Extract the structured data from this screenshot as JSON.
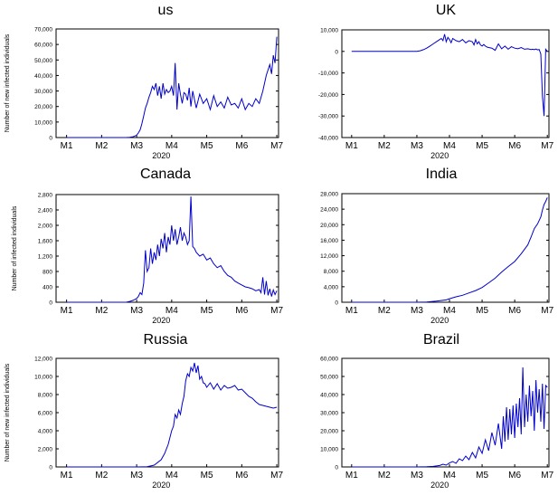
{
  "figure": {
    "year_label": "2020",
    "month_ticks": [
      "M1",
      "M2",
      "M3",
      "M4",
      "M5",
      "M6",
      "M7"
    ],
    "line_color": "#0000cc"
  },
  "chart_data": [
    {
      "type": "line",
      "title": "us",
      "ylabel": "Number of new infected individuals",
      "xlabel": "2020",
      "ylim": [
        0,
        70000
      ],
      "yticks": [
        0,
        10000,
        20000,
        30000,
        40000,
        50000,
        60000,
        70000
      ],
      "ytick_labels": [
        "0",
        "10,000",
        "20,000",
        "30,000",
        "40,000",
        "50,000",
        "60,000",
        "70,000"
      ],
      "x_month_ticks": [
        "M1",
        "M2",
        "M3",
        "M4",
        "M5",
        "M6",
        "M7"
      ],
      "series": [
        {
          "x": [
            1.0,
            2.0,
            2.7,
            2.8,
            2.9,
            3.0,
            3.05,
            3.1,
            3.15,
            3.2,
            3.25,
            3.3,
            3.35,
            3.4,
            3.45,
            3.5,
            3.55,
            3.6,
            3.65,
            3.7,
            3.75,
            3.8,
            3.85,
            3.9,
            3.95,
            4.0,
            4.05,
            4.1,
            4.15,
            4.2,
            4.25,
            4.3,
            4.35,
            4.4,
            4.45,
            4.5,
            4.55,
            4.6,
            4.7,
            4.8,
            4.9,
            5.0,
            5.1,
            5.2,
            5.3,
            5.4,
            5.5,
            5.6,
            5.7,
            5.8,
            5.9,
            6.0,
            6.1,
            6.2,
            6.3,
            6.4,
            6.5,
            6.6,
            6.7,
            6.8,
            6.85,
            6.9,
            6.95,
            7.0
          ],
          "values": [
            0,
            0,
            0,
            100,
            500,
            1500,
            3000,
            5000,
            9000,
            14000,
            19000,
            22000,
            26000,
            29000,
            33000,
            31000,
            35000,
            27000,
            33000,
            25000,
            35000,
            28000,
            31000,
            29000,
            30000,
            33000,
            27000,
            48000,
            18000,
            35000,
            28000,
            22000,
            29000,
            28000,
            24000,
            32000,
            20000,
            30000,
            19000,
            28000,
            22000,
            25000,
            18000,
            27000,
            20000,
            23000,
            19000,
            26000,
            21000,
            22000,
            19000,
            25000,
            18000,
            22000,
            20000,
            25000,
            22000,
            30000,
            40000,
            47000,
            41000,
            53000,
            48000,
            65000
          ]
        }
      ]
    },
    {
      "type": "line",
      "title": "UK",
      "ylabel": "",
      "xlabel": "2020",
      "ylim": [
        -40000,
        10000
      ],
      "yticks": [
        -40000,
        -30000,
        -20000,
        -10000,
        0,
        10000
      ],
      "ytick_labels": [
        "-40,000",
        "-30,000",
        "-20,000",
        "-10,000",
        "0",
        "10,000"
      ],
      "x_month_ticks": [
        "M1",
        "M2",
        "M3",
        "M4",
        "M5",
        "M6",
        "M7"
      ],
      "series": [
        {
          "x": [
            1.0,
            2.0,
            2.8,
            3.0,
            3.1,
            3.2,
            3.3,
            3.4,
            3.5,
            3.6,
            3.7,
            3.75,
            3.8,
            3.85,
            3.9,
            3.95,
            4.0,
            4.05,
            4.1,
            4.2,
            4.3,
            4.4,
            4.5,
            4.6,
            4.7,
            4.75,
            4.8,
            4.85,
            4.9,
            4.95,
            5.0,
            5.05,
            5.1,
            5.15,
            5.2,
            5.3,
            5.4,
            5.5,
            5.6,
            5.7,
            5.8,
            5.9,
            6.0,
            6.1,
            6.2,
            6.3,
            6.4,
            6.5,
            6.55,
            6.6,
            6.65,
            6.7,
            6.75,
            6.8,
            6.85,
            6.9,
            6.95,
            7.0
          ],
          "values": [
            0,
            0,
            0,
            50,
            300,
            800,
            1500,
            2500,
            3500,
            4500,
            5500,
            6000,
            5000,
            8000,
            4500,
            6500,
            5500,
            4000,
            6000,
            5000,
            4500,
            5500,
            4000,
            5000,
            4500,
            3000,
            5500,
            3500,
            4500,
            3000,
            2500,
            3200,
            2500,
            2000,
            1800,
            1500,
            500,
            3500,
            1200,
            2500,
            1000,
            2200,
            1500,
            1200,
            1800,
            1000,
            1200,
            900,
            1000,
            800,
            1100,
            700,
            900,
            -1200,
            -21000,
            -30000,
            1000,
            0
          ]
        }
      ]
    },
    {
      "type": "line",
      "title": "Canada",
      "ylabel": "Number of infected individuals",
      "xlabel": "2020",
      "ylim": [
        0,
        2800
      ],
      "yticks": [
        0,
        400,
        800,
        1200,
        1600,
        2000,
        2400,
        2800
      ],
      "ytick_labels": [
        "0",
        "400",
        "800",
        "1,200",
        "1,600",
        "2,000",
        "2,400",
        "2,800"
      ],
      "x_month_ticks": [
        "M1",
        "M2",
        "M3",
        "M4",
        "M5",
        "M6",
        "M7"
      ],
      "series": [
        {
          "x": [
            1.0,
            2.0,
            2.7,
            2.8,
            2.9,
            3.0,
            3.05,
            3.1,
            3.15,
            3.2,
            3.25,
            3.3,
            3.35,
            3.4,
            3.45,
            3.5,
            3.55,
            3.6,
            3.65,
            3.7,
            3.75,
            3.8,
            3.85,
            3.9,
            3.95,
            4.0,
            4.05,
            4.1,
            4.15,
            4.2,
            4.25,
            4.3,
            4.35,
            4.4,
            4.45,
            4.5,
            4.55,
            4.6,
            4.65,
            4.7,
            4.8,
            4.9,
            5.0,
            5.1,
            5.2,
            5.3,
            5.4,
            5.5,
            5.6,
            5.7,
            5.8,
            5.9,
            6.0,
            6.1,
            6.2,
            6.3,
            6.4,
            6.5,
            6.55,
            6.6,
            6.65,
            6.7,
            6.75,
            6.8,
            6.85,
            6.9,
            6.95,
            7.0
          ],
          "values": [
            0,
            0,
            0,
            20,
            50,
            100,
            150,
            250,
            200,
            500,
            1350,
            800,
            900,
            1400,
            1000,
            1300,
            1100,
            1500,
            1200,
            1650,
            1400,
            1800,
            1300,
            1700,
            1500,
            2000,
            1600,
            1900,
            1500,
            1700,
            1950,
            1600,
            1800,
            1700,
            1500,
            1600,
            2750,
            1450,
            1400,
            1300,
            1200,
            1250,
            1100,
            1150,
            1000,
            900,
            950,
            800,
            700,
            650,
            550,
            500,
            450,
            400,
            380,
            350,
            300,
            330,
            250,
            650,
            200,
            550,
            180,
            350,
            150,
            320,
            200,
            300
          ]
        }
      ]
    },
    {
      "type": "line",
      "title": "India",
      "ylabel": "",
      "xlabel": "2020",
      "ylim": [
        0,
        28000
      ],
      "yticks": [
        0,
        4000,
        8000,
        12000,
        16000,
        20000,
        24000,
        28000
      ],
      "ytick_labels": [
        "0",
        "4,000",
        "8,000",
        "12,000",
        "16,000",
        "20,000",
        "24,000",
        "28,000"
      ],
      "x_month_ticks": [
        "M1",
        "M2",
        "M3",
        "M4",
        "M5",
        "M6",
        "M7"
      ],
      "series": [
        {
          "x": [
            1.0,
            2.0,
            3.0,
            3.3,
            3.6,
            3.9,
            4.0,
            4.2,
            4.4,
            4.6,
            4.8,
            5.0,
            5.2,
            5.4,
            5.6,
            5.8,
            6.0,
            6.2,
            6.4,
            6.5,
            6.6,
            6.7,
            6.8,
            6.85,
            6.9,
            6.95,
            7.0
          ],
          "values": [
            0,
            0,
            0,
            80,
            300,
            600,
            900,
            1400,
            1800,
            2400,
            3000,
            3800,
            5000,
            6200,
            7800,
            9200,
            10500,
            12500,
            14800,
            16800,
            19000,
            20200,
            22000,
            23800,
            25200,
            26000,
            27000
          ]
        }
      ]
    },
    {
      "type": "line",
      "title": "Russia",
      "ylabel": "Number of new infected individuals",
      "xlabel": "2020",
      "ylim": [
        0,
        12000
      ],
      "yticks": [
        0,
        2000,
        4000,
        6000,
        8000,
        10000,
        12000
      ],
      "ytick_labels": [
        "0",
        "2,000",
        "4,000",
        "6,000",
        "8,000",
        "10,000",
        "12,000"
      ],
      "x_month_ticks": [
        "M1",
        "M2",
        "M3",
        "M4",
        "M5",
        "M6",
        "M7"
      ],
      "series": [
        {
          "x": [
            1.0,
            2.0,
            3.0,
            3.3,
            3.5,
            3.7,
            3.8,
            3.9,
            4.0,
            4.05,
            4.1,
            4.15,
            4.2,
            4.25,
            4.3,
            4.35,
            4.4,
            4.45,
            4.5,
            4.55,
            4.6,
            4.65,
            4.7,
            4.75,
            4.8,
            4.85,
            4.9,
            4.95,
            5.0,
            5.1,
            5.2,
            5.3,
            5.4,
            5.5,
            5.6,
            5.7,
            5.8,
            5.9,
            6.0,
            6.1,
            6.2,
            6.3,
            6.4,
            6.5,
            6.6,
            6.7,
            6.8,
            6.9,
            7.0
          ],
          "values": [
            0,
            0,
            0,
            30,
            200,
            800,
            1500,
            2500,
            4000,
            4500,
            5800,
            5400,
            6300,
            5800,
            7000,
            7800,
            9500,
            10300,
            10000,
            11000,
            10600,
            11500,
            10400,
            11200,
            9700,
            10000,
            9300,
            9200,
            8800,
            9300,
            8600,
            9200,
            8500,
            9000,
            8700,
            8800,
            9000,
            8500,
            8600,
            8200,
            7800,
            7600,
            7200,
            6900,
            6800,
            6700,
            6600,
            6500,
            6600
          ]
        }
      ]
    },
    {
      "type": "line",
      "title": "Brazil",
      "ylabel": "",
      "xlabel": "2020",
      "ylim": [
        0,
        60000
      ],
      "yticks": [
        0,
        10000,
        20000,
        30000,
        40000,
        50000,
        60000
      ],
      "ytick_labels": [
        "0",
        "10,000",
        "20,000",
        "30,000",
        "40,000",
        "50,000",
        "60,000"
      ],
      "x_month_ticks": [
        "M1",
        "M2",
        "M3",
        "M4",
        "M5",
        "M6",
        "M7"
      ],
      "series": [
        {
          "x": [
            1.0,
            2.0,
            3.0,
            3.3,
            3.5,
            3.7,
            3.8,
            3.9,
            4.0,
            4.1,
            4.2,
            4.3,
            4.4,
            4.5,
            4.6,
            4.7,
            4.8,
            4.9,
            5.0,
            5.1,
            5.2,
            5.3,
            5.4,
            5.5,
            5.6,
            5.65,
            5.7,
            5.75,
            5.8,
            5.85,
            5.9,
            5.95,
            6.0,
            6.05,
            6.1,
            6.15,
            6.2,
            6.25,
            6.3,
            6.35,
            6.4,
            6.45,
            6.5,
            6.55,
            6.6,
            6.65,
            6.7,
            6.75,
            6.8,
            6.85,
            6.9,
            6.95,
            7.0
          ],
          "values": [
            0,
            0,
            0,
            100,
            300,
            800,
            1500,
            1000,
            2200,
            3000,
            2000,
            4500,
            3500,
            6000,
            4000,
            8000,
            5000,
            11000,
            7500,
            15000,
            9000,
            19000,
            12000,
            24000,
            10000,
            28000,
            14000,
            33000,
            15000,
            32000,
            18000,
            34000,
            16000,
            35000,
            22000,
            38000,
            18000,
            55000,
            22000,
            40000,
            25000,
            45000,
            28000,
            42000,
            20000,
            48000,
            30000,
            43000,
            25000,
            46000,
            21000,
            45000,
            44000
          ]
        }
      ]
    }
  ]
}
